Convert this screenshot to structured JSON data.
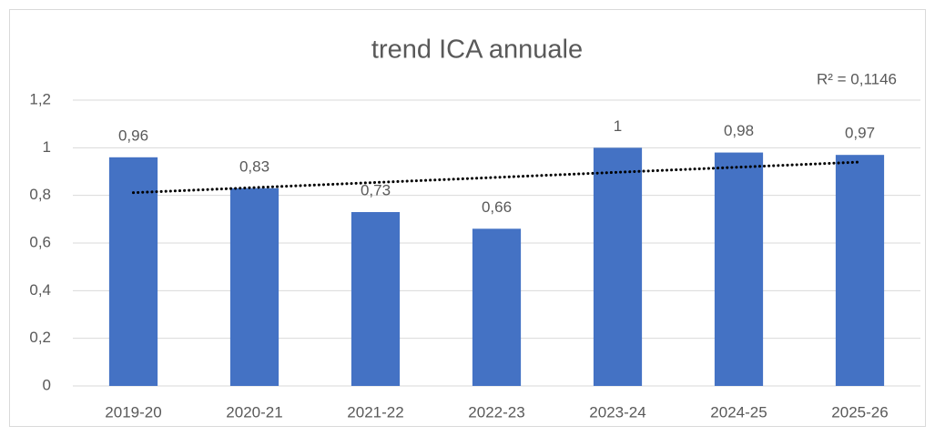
{
  "chart_data": {
    "type": "bar",
    "title": "trend ICA annuale",
    "categories": [
      "2019-20",
      "2020-21",
      "2021-22",
      "2022-23",
      "2023-24",
      "2024-25",
      "2025-26"
    ],
    "values": [
      0.96,
      0.83,
      0.73,
      0.66,
      1,
      0.98,
      0.97
    ],
    "value_labels": [
      "0,96",
      "0,83",
      "0,73",
      "0,66",
      "1",
      "0,98",
      "0,97"
    ],
    "color": "#4472c4",
    "ylim": [
      0,
      1.2
    ],
    "yticks": [
      0,
      {
        "value": 0.2,
        "label": "0,2"
      },
      {
        "value": 0.4,
        "label": "0,4"
      },
      {
        "value": 0.6,
        "label": "0,6"
      },
      {
        "value": 0.8,
        "label": "0,8"
      },
      1,
      {
        "value": 1.2,
        "label": "1,2"
      }
    ],
    "grid": true,
    "trendline": {
      "type": "linear",
      "label": "R² = 0,1146",
      "color": "#000000"
    }
  }
}
